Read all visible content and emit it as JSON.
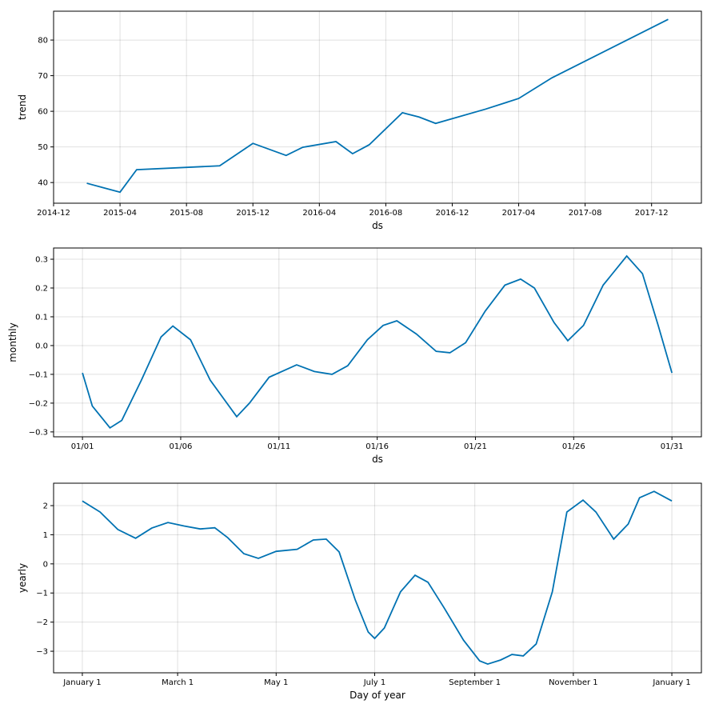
{
  "chart_data": [
    {
      "type": "line",
      "xlabel": "ds",
      "ylabel": "trend",
      "color": "#0072b2",
      "grid": true,
      "x": [
        "2015-02",
        "2015-04",
        "2015-05",
        "2015-10",
        "2015-12",
        "2016-02",
        "2016-03",
        "2016-05",
        "2016-06",
        "2016-07",
        "2016-09",
        "2016-10",
        "2016-11",
        "2017-02",
        "2017-04",
        "2017-06",
        "2018-01"
      ],
      "values": [
        39.8,
        37.3,
        43.6,
        44.7,
        51.0,
        47.6,
        49.9,
        51.5,
        48.1,
        50.6,
        59.6,
        58.4,
        56.6,
        60.6,
        63.6,
        69.4,
        85.8
      ],
      "xlim": [
        "2014-12",
        "2018-03"
      ],
      "ylim": [
        34.2,
        88.1
      ],
      "xticks": [
        "2014-12",
        "2015-04",
        "2015-08",
        "2015-12",
        "2016-04",
        "2016-08",
        "2016-12",
        "2017-04",
        "2017-08",
        "2017-12"
      ],
      "yticks": [
        40,
        50,
        60,
        70,
        80
      ]
    },
    {
      "type": "line",
      "xlabel": "ds",
      "ylabel": "monthly",
      "color": "#0072b2",
      "grid": true,
      "x": [
        1,
        1.5,
        2.4,
        3,
        4,
        5,
        5.6,
        6.5,
        7.5,
        8.85,
        9.5,
        10.5,
        11.9,
        12.8,
        13.7,
        14.5,
        15.5,
        16.3,
        17,
        18,
        19,
        19.7,
        20.5,
        21.5,
        22.5,
        23.3,
        24,
        25,
        25.7,
        26.5,
        27.5,
        28.7,
        29.5,
        30.3,
        31
      ],
      "values": [
        -0.095,
        -0.21,
        -0.286,
        -0.26,
        -0.12,
        0.03,
        0.068,
        0.02,
        -0.12,
        -0.247,
        -0.2,
        -0.11,
        -0.067,
        -0.09,
        -0.1,
        -0.07,
        0.02,
        0.07,
        0.086,
        0.04,
        -0.02,
        -0.025,
        0.01,
        0.12,
        0.21,
        0.231,
        0.2,
        0.08,
        0.017,
        0.07,
        0.21,
        0.311,
        0.25,
        0.07,
        -0.095
      ],
      "xlim": [
        -0.47,
        32.5
      ],
      "ylim": [
        -0.317,
        0.339
      ],
      "xticks": [
        {
          "value": 1,
          "label": "01/01"
        },
        {
          "value": 6,
          "label": "01/06"
        },
        {
          "value": 11,
          "label": "01/11"
        },
        {
          "value": 16,
          "label": "01/16"
        },
        {
          "value": 21,
          "label": "01/21"
        },
        {
          "value": 26,
          "label": "01/26"
        },
        {
          "value": 31,
          "label": "01/31"
        }
      ],
      "yticks": [
        {
          "value": -0.3,
          "label": "−0.3"
        },
        {
          "value": -0.2,
          "label": "−0.2"
        },
        {
          "value": -0.1,
          "label": "−0.1"
        },
        {
          "value": 0,
          "label": "0.0"
        },
        {
          "value": 0.1,
          "label": "0.1"
        },
        {
          "value": 0.2,
          "label": "0.2"
        },
        {
          "value": 0.3,
          "label": "0.3"
        }
      ]
    },
    {
      "type": "line",
      "xlabel": "Day of year",
      "ylabel": "yearly",
      "color": "#0072b2",
      "grid": true,
      "x": [
        0,
        11,
        22,
        33,
        43,
        53,
        63,
        73,
        82,
        90,
        100,
        109,
        120,
        133,
        143,
        151,
        159,
        169,
        177,
        181,
        187,
        197,
        206,
        214,
        224,
        236,
        246,
        251,
        259,
        266,
        273,
        281,
        291,
        300,
        310,
        318,
        329,
        338,
        345,
        354,
        365
      ],
      "values": [
        2.16,
        1.78,
        1.18,
        0.88,
        1.23,
        1.42,
        1.3,
        1.2,
        1.24,
        0.9,
        0.35,
        0.19,
        0.43,
        0.5,
        0.82,
        0.85,
        0.41,
        -1.24,
        -2.34,
        -2.56,
        -2.2,
        -0.96,
        -0.39,
        -0.63,
        -1.51,
        -2.62,
        -3.33,
        -3.44,
        -3.3,
        -3.11,
        -3.16,
        -2.75,
        -0.96,
        1.78,
        2.19,
        1.78,
        0.85,
        1.37,
        2.27,
        2.49,
        2.16
      ],
      "xlim": [
        -17.8,
        383.3
      ],
      "ylim": [
        -3.74,
        2.77
      ],
      "xticks": [
        {
          "value": 0,
          "label": "January 1"
        },
        {
          "value": 59,
          "label": "March 1"
        },
        {
          "value": 120,
          "label": "May 1"
        },
        {
          "value": 181,
          "label": "July 1"
        },
        {
          "value": 243,
          "label": "September 1"
        },
        {
          "value": 304,
          "label": "November 1"
        },
        {
          "value": 365,
          "label": "January 1"
        }
      ],
      "yticks": [
        {
          "value": -3,
          "label": "−3"
        },
        {
          "value": -2,
          "label": "−2"
        },
        {
          "value": -1,
          "label": "−1"
        },
        0,
        1,
        2
      ]
    }
  ]
}
